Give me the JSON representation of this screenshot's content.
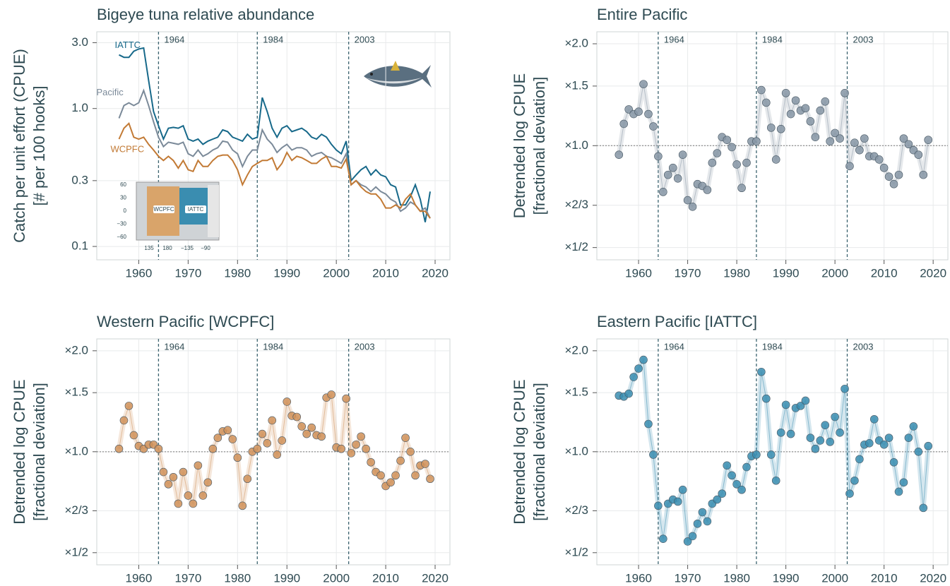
{
  "chart_data": [
    {
      "type": "line",
      "title": "Bigeye tuna relative abundance",
      "ylabel": [
        "Catch per unit effort (CPUE)",
        "[# per 100 hooks]"
      ],
      "log_y": true,
      "grid": true,
      "xlim": [
        1951.5,
        2023
      ],
      "xticks": [
        1960,
        1970,
        1980,
        1990,
        2000,
        2010,
        2020
      ],
      "ylim": [
        0.08,
        3.6
      ],
      "yticks": [
        0.1,
        0.3,
        {
          "value": 1,
          "label": "1.0"
        },
        {
          "value": 3,
          "label": "3.0"
        }
      ],
      "breaks": [
        1964,
        1984,
        {
          "value": 2002.5,
          "label": "2003"
        }
      ],
      "x": [
        1956,
        1957,
        1958,
        1959,
        1960,
        1961,
        1962,
        1963,
        1964,
        1965,
        1966,
        1967,
        1968,
        1969,
        1970,
        1971,
        1972,
        1973,
        1974,
        1975,
        1976,
        1977,
        1978,
        1979,
        1980,
        1981,
        1982,
        1983,
        1984,
        1985,
        1986,
        1987,
        1988,
        1989,
        1990,
        1991,
        1992,
        1993,
        1994,
        1995,
        1996,
        1997,
        1998,
        1999,
        2000,
        2001,
        2002,
        2003,
        2004,
        2005,
        2006,
        2007,
        2008,
        2009,
        2010,
        2011,
        2012,
        2013,
        2014,
        2015,
        2016,
        2017,
        2018,
        2019
      ],
      "series": [
        {
          "name": "IATTC",
          "color": "#17698a",
          "values": [
            2.45,
            2.35,
            2.35,
            2.6,
            2.7,
            2.75,
            1.6,
            0.95,
            0.75,
            0.6,
            0.72,
            0.73,
            0.72,
            0.75,
            0.6,
            0.58,
            0.6,
            0.55,
            0.58,
            0.6,
            0.62,
            0.7,
            0.68,
            0.62,
            0.6,
            0.58,
            0.65,
            0.6,
            0.62,
            1.2,
            0.95,
            0.72,
            0.62,
            0.72,
            0.75,
            0.68,
            0.7,
            0.72,
            0.68,
            0.62,
            0.6,
            0.65,
            0.62,
            0.55,
            0.5,
            0.47,
            0.58,
            0.3,
            0.33,
            0.36,
            0.38,
            0.33,
            0.36,
            0.33,
            0.32,
            0.28,
            0.27,
            0.2,
            0.2,
            0.23,
            0.28,
            0.22,
            0.15,
            0.25
          ]
        },
        {
          "name": "Pacific",
          "color": "#7b8a99",
          "values": [
            0.85,
            1.05,
            1.1,
            1.05,
            1.1,
            1.35,
            1.05,
            0.8,
            0.62,
            0.53,
            0.57,
            0.56,
            0.55,
            0.57,
            0.47,
            0.45,
            0.5,
            0.45,
            0.47,
            0.5,
            0.52,
            0.58,
            0.57,
            0.5,
            0.47,
            0.38,
            0.45,
            0.5,
            0.5,
            0.7,
            0.6,
            0.55,
            0.48,
            0.52,
            0.55,
            0.5,
            0.52,
            0.52,
            0.5,
            0.45,
            0.47,
            0.48,
            0.45,
            0.44,
            0.42,
            0.4,
            0.47,
            0.28,
            0.3,
            0.28,
            0.27,
            0.25,
            0.27,
            0.25,
            0.24,
            0.22,
            0.21,
            0.18,
            0.19,
            0.21,
            0.2,
            0.18,
            0.19,
            0.16
          ]
        },
        {
          "name": "WCPFC",
          "color": "#c27a35",
          "values": [
            0.6,
            0.72,
            0.78,
            0.62,
            0.6,
            0.62,
            0.55,
            0.5,
            0.45,
            0.42,
            0.45,
            0.42,
            0.37,
            0.42,
            0.36,
            0.35,
            0.42,
            0.38,
            0.38,
            0.42,
            0.45,
            0.46,
            0.46,
            0.42,
            0.36,
            0.28,
            0.33,
            0.38,
            0.4,
            0.42,
            0.42,
            0.44,
            0.36,
            0.4,
            0.48,
            0.42,
            0.45,
            0.44,
            0.42,
            0.4,
            0.4,
            0.43,
            0.45,
            0.38,
            0.38,
            0.37,
            0.43,
            0.28,
            0.3,
            0.27,
            0.25,
            0.24,
            0.24,
            0.22,
            0.19,
            0.19,
            0.2,
            0.19,
            0.22,
            0.24,
            0.2,
            0.18,
            0.18,
            0.16
          ]
        }
      ],
      "inset": {
        "yticks": [
          60,
          30,
          0,
          {
            "value": -30,
            "label": "−30"
          },
          {
            "value": -60,
            "label": "−60"
          }
        ],
        "xticks": [
          135,
          180,
          {
            "value": -135,
            "label": "−135"
          },
          {
            "value": -90,
            "label": "−90"
          }
        ],
        "regions": [
          "WCPFC",
          "IATTC"
        ]
      }
    },
    {
      "type": "scatter",
      "title": "Entire Pacific",
      "ylabel": [
        "Detrended log CPUE",
        "[fractional deviation]"
      ],
      "log_y": true,
      "grid": true,
      "hline": 1,
      "color": "#8796a6",
      "xlim": [
        1951.5,
        2023
      ],
      "xticks": [
        1960,
        1970,
        1980,
        1990,
        2000,
        2010,
        2020
      ],
      "ylim": [
        0.46,
        2.17
      ],
      "yticks": [
        {
          "value": 2,
          "label": "×2.0"
        },
        {
          "value": 1.5,
          "label": "×1.5"
        },
        {
          "value": 1,
          "label": "×1.0"
        },
        {
          "value": 0.6667,
          "label": "×2/3"
        },
        {
          "value": 0.5,
          "label": "×1/2"
        }
      ],
      "breaks": [
        1964,
        1984,
        {
          "value": 2002.5,
          "label": "2003"
        }
      ],
      "x": [
        1956,
        1957,
        1958,
        1959,
        1960,
        1961,
        1962,
        1963,
        1964,
        1965,
        1966,
        1967,
        1968,
        1969,
        1970,
        1971,
        1972,
        1973,
        1974,
        1975,
        1976,
        1977,
        1978,
        1979,
        1980,
        1981,
        1982,
        1983,
        1984,
        1985,
        1986,
        1987,
        1988,
        1989,
        1990,
        1991,
        1992,
        1993,
        1994,
        1995,
        1996,
        1997,
        1998,
        1999,
        2000,
        2001,
        2002,
        2003,
        2004,
        2005,
        2006,
        2007,
        2008,
        2009,
        2010,
        2011,
        2012,
        2013,
        2014,
        2015,
        2016,
        2017,
        2018,
        2019
      ],
      "values": [
        0.94,
        1.16,
        1.28,
        1.24,
        1.26,
        1.52,
        1.24,
        1.14,
        0.93,
        0.73,
        0.82,
        0.86,
        0.8,
        0.94,
        0.69,
        0.66,
        0.77,
        0.76,
        0.74,
        0.89,
        0.95,
        1.06,
        1.04,
        0.99,
        0.88,
        0.75,
        0.89,
        1.03,
        1.03,
        1.46,
        1.34,
        1.13,
        0.91,
        1.12,
        1.43,
        1.24,
        1.36,
        1.27,
        1.29,
        1.18,
        1.06,
        1.27,
        1.35,
        1.03,
        1.09,
        1.05,
        1.43,
        0.87,
        1.02,
        0.97,
        1.05,
        0.93,
        0.93,
        0.91,
        0.86,
        0.81,
        0.77,
        0.82,
        1.05,
        1.01,
        0.97,
        0.94,
        0.82,
        1.04
      ]
    },
    {
      "type": "scatter",
      "title": "Western Pacific [WCPFC]",
      "ylabel": [
        "Detrended log CPUE",
        "[fractional deviation]"
      ],
      "log_y": true,
      "grid": true,
      "hline": 1,
      "color": "#d0925a",
      "xlim": [
        1951.5,
        2023
      ],
      "xticks": [
        1960,
        1970,
        1980,
        1990,
        2000,
        2010,
        2020
      ],
      "ylim": [
        0.46,
        2.17
      ],
      "yticks": [
        {
          "value": 2,
          "label": "×2.0"
        },
        {
          "value": 1.5,
          "label": "×1.5"
        },
        {
          "value": 1,
          "label": "×1.0"
        },
        {
          "value": 0.6667,
          "label": "×2/3"
        },
        {
          "value": 0.5,
          "label": "×1/2"
        }
      ],
      "breaks": [
        1964,
        1984,
        {
          "value": 2002.5,
          "label": "2003"
        }
      ],
      "x": [
        1956,
        1957,
        1958,
        1959,
        1960,
        1961,
        1962,
        1963,
        1964,
        1965,
        1966,
        1967,
        1968,
        1969,
        1970,
        1971,
        1972,
        1973,
        1974,
        1975,
        1976,
        1977,
        1978,
        1979,
        1980,
        1981,
        1982,
        1983,
        1984,
        1985,
        1986,
        1987,
        1988,
        1989,
        1990,
        1991,
        1992,
        1993,
        1994,
        1995,
        1996,
        1997,
        1998,
        1999,
        2000,
        2001,
        2002,
        2003,
        2004,
        2005,
        2006,
        2007,
        2008,
        2009,
        2010,
        2011,
        2012,
        2013,
        2014,
        2015,
        2016,
        2017,
        2018,
        2019
      ],
      "values": [
        1.02,
        1.24,
        1.37,
        1.12,
        1.04,
        1.02,
        1.05,
        1.05,
        1.02,
        0.87,
        0.8,
        0.84,
        0.7,
        0.87,
        0.74,
        0.7,
        0.91,
        0.74,
        0.81,
        1.02,
        1.1,
        1.15,
        1.16,
        1.09,
        0.96,
        0.69,
        0.83,
        1.0,
        1.02,
        1.13,
        1.06,
        1.24,
        0.98,
        1.08,
        1.41,
        1.28,
        1.27,
        1.19,
        1.13,
        1.18,
        1.12,
        1.11,
        1.45,
        1.48,
        1.03,
        1.02,
        1.44,
        0.99,
        1.05,
        1.11,
        1.02,
        0.93,
        0.87,
        0.85,
        0.79,
        0.81,
        0.85,
        0.94,
        1.1,
        1.0,
        0.85,
        0.91,
        0.92,
        0.83
      ]
    },
    {
      "type": "scatter",
      "title": "Eastern Pacific [IATTC]",
      "ylabel": [
        "Detrended log CPUE",
        "[fractional deviation]"
      ],
      "log_y": true,
      "grid": true,
      "hline": 1,
      "color": "#3a8db0",
      "xlim": [
        1951.5,
        2023
      ],
      "xticks": [
        1960,
        1970,
        1980,
        1990,
        2000,
        2010,
        2020
      ],
      "ylim": [
        0.46,
        2.17
      ],
      "yticks": [
        {
          "value": 2,
          "label": "×2.0"
        },
        {
          "value": 1.5,
          "label": "×1.5"
        },
        {
          "value": 1,
          "label": "×1.0"
        },
        {
          "value": 0.6667,
          "label": "×2/3"
        },
        {
          "value": 0.5,
          "label": "×1/2"
        }
      ],
      "breaks": [
        1964,
        1984,
        {
          "value": 2002.5,
          "label": "2003"
        }
      ],
      "x": [
        1956,
        1957,
        1958,
        1959,
        1960,
        1961,
        1962,
        1963,
        1964,
        1965,
        1966,
        1967,
        1968,
        1969,
        1970,
        1971,
        1972,
        1973,
        1974,
        1975,
        1976,
        1977,
        1978,
        1979,
        1980,
        1981,
        1982,
        1983,
        1984,
        1985,
        1986,
        1987,
        1988,
        1989,
        1990,
        1991,
        1992,
        1993,
        1994,
        1995,
        1996,
        1997,
        1998,
        1999,
        2000,
        2001,
        2002,
        2003,
        2004,
        2005,
        2006,
        2007,
        2008,
        2009,
        2010,
        2011,
        2012,
        2013,
        2014,
        2015,
        2016,
        2017,
        2018,
        2019
      ],
      "values": [
        1.47,
        1.46,
        1.49,
        1.67,
        1.77,
        1.88,
        1.21,
        0.98,
        0.69,
        0.55,
        0.7,
        0.72,
        0.71,
        0.77,
        0.54,
        0.56,
        0.61,
        0.66,
        0.62,
        0.7,
        0.72,
        0.75,
        0.91,
        0.85,
        0.8,
        0.77,
        0.9,
        0.97,
        0.98,
        1.73,
        1.44,
        0.98,
        0.82,
        1.14,
        1.38,
        1.13,
        1.35,
        1.37,
        1.42,
        1.1,
        1.02,
        1.08,
        1.2,
        1.07,
        1.27,
        1.14,
        1.54,
        0.75,
        0.82,
        0.95,
        1.05,
        1.06,
        1.25,
        1.08,
        1.05,
        1.1,
        0.93,
        0.76,
        0.81,
        1.1,
        1.19,
        1.0,
        0.68,
        1.04
      ]
    }
  ]
}
